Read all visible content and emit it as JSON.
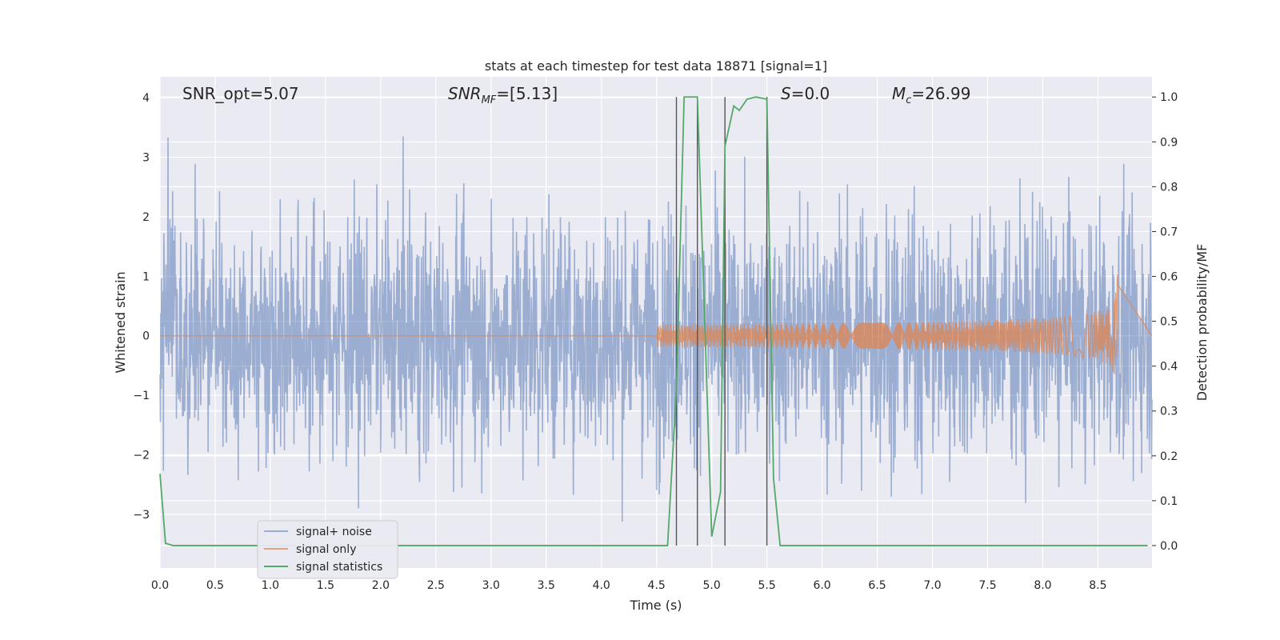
{
  "chart_data": {
    "type": "line",
    "title": "stats at each timestep for test data 18871 [signal=1]",
    "xlabel": "Time (s)",
    "ylabel_left": "Whitened strain",
    "ylabel_right": "Detection probability/MF",
    "xlim": [
      0.0,
      8.99
    ],
    "ylim_left": [
      -3.9,
      4.35
    ],
    "ylim_right": [
      -0.05,
      1.045
    ],
    "x_ticks": [
      0.0,
      0.5,
      1.0,
      1.5,
      2.0,
      2.5,
      3.0,
      3.5,
      4.0,
      4.5,
      5.0,
      5.5,
      6.0,
      6.5,
      7.0,
      7.5,
      8.0,
      8.5
    ],
    "x_tick_labels": [
      "0.0",
      "0.5",
      "1.0",
      "1.5",
      "2.0",
      "2.5",
      "3.0",
      "3.5",
      "4.0",
      "4.5",
      "5.0",
      "5.5",
      "6.0",
      "6.5",
      "7.0",
      "7.5",
      "8.0",
      "8.5"
    ],
    "y_left_ticks": [
      -3,
      -2,
      -1,
      0,
      1,
      2,
      3,
      4
    ],
    "y_left_tick_labels": [
      "−3",
      "−2",
      "−1",
      "0",
      "1",
      "2",
      "3",
      "4"
    ],
    "y_right_ticks": [
      0.0,
      0.1,
      0.2,
      0.3,
      0.4,
      0.5,
      0.6,
      0.7,
      0.8,
      0.9,
      1.0
    ],
    "y_right_tick_labels": [
      "0.0",
      "0.1",
      "0.2",
      "0.3",
      "0.4",
      "0.5",
      "0.6",
      "0.7",
      "0.8",
      "0.9",
      "1.0"
    ],
    "grid": true,
    "legend_placement": "lower-left",
    "annotations": [
      {
        "text": "SNR_opt=5.07",
        "x": 0.2
      },
      {
        "text": "SNR_MF=[5.13]",
        "x": 2.6
      },
      {
        "text": "S=0.0",
        "x": 5.6
      },
      {
        "text": "M_c=26.99",
        "x": 6.6
      }
    ],
    "vertical_lines_x": [
      4.68,
      4.87,
      5.12,
      5.5
    ],
    "series": [
      {
        "name": "signal+ noise",
        "color": "#4c72b0",
        "axis": "left",
        "noise_sigma": 1.0,
        "x_range": [
          0.0,
          8.99
        ]
      },
      {
        "name": "signal only",
        "color": "#dd8452",
        "axis": "left",
        "chirp_end_x": 8.68,
        "peak_amplitude": 1.08
      },
      {
        "name": "signal statistics",
        "color": "#55a868",
        "axis": "right",
        "x": [
          0.0,
          0.05,
          0.12,
          0.2,
          4.6,
          4.68,
          4.75,
          4.87,
          5.0,
          5.08,
          5.12,
          5.2,
          5.25,
          5.32,
          5.4,
          5.5,
          5.56,
          5.62,
          8.95
        ],
        "y": [
          0.16,
          0.005,
          0.0,
          0.0,
          0.0,
          0.35,
          1.0,
          1.0,
          0.02,
          0.12,
          0.89,
          0.98,
          0.97,
          0.995,
          1.0,
          0.995,
          0.15,
          0.0,
          0.0
        ]
      }
    ]
  }
}
